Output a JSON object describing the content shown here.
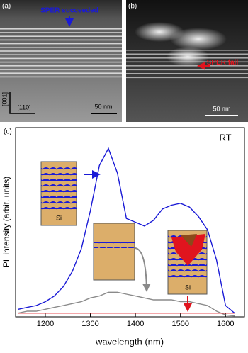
{
  "images": [
    {
      "label": "(a)",
      "annotation": "SPER succeeded",
      "axes": [
        "[001]",
        "[110]"
      ],
      "scale_bar": "50 nm"
    },
    {
      "label": "(b)",
      "annotation": "SPER fail",
      "scale_bar": "50 nm"
    }
  ],
  "chart_data": {
    "type": "line",
    "panel_label": "(c)",
    "annotation": "RT",
    "inset_labels": [
      "Si",
      "Si"
    ],
    "x_label": "wavelength (nm)",
    "y_label": "PL intensity (arbit. units)",
    "x": [
      1140,
      1160,
      1180,
      1200,
      1220,
      1240,
      1260,
      1280,
      1300,
      1320,
      1340,
      1360,
      1380,
      1400,
      1420,
      1440,
      1460,
      1480,
      1500,
      1520,
      1540,
      1560,
      1580,
      1600,
      1620
    ],
    "series": [
      {
        "color": "#1a1ad6",
        "values": [
          0.4,
          0.5,
          0.6,
          0.8,
          1.1,
          1.6,
          2.4,
          3.6,
          5.6,
          8.0,
          8.9,
          7.6,
          5.2,
          5.0,
          4.8,
          5.1,
          5.7,
          5.9,
          6.0,
          5.8,
          5.3,
          4.6,
          3.0,
          0.6,
          0.2
        ]
      },
      {
        "color": "#8a8a8a",
        "values": [
          0.2,
          0.3,
          0.3,
          0.4,
          0.5,
          0.6,
          0.7,
          0.8,
          1.0,
          1.1,
          1.3,
          1.3,
          1.2,
          1.1,
          1.0,
          0.9,
          0.9,
          0.9,
          0.8,
          0.8,
          0.7,
          0.6,
          0.3,
          0.1,
          0.05
        ]
      },
      {
        "color": "#e0141e",
        "values": [
          0.2,
          0.2,
          0.2,
          0.2,
          0.2,
          0.2,
          0.2,
          0.2,
          0.2,
          0.2,
          0.2,
          0.2,
          0.2,
          0.2,
          0.2,
          0.2,
          0.2,
          0.2,
          0.2,
          0.2,
          0.2,
          0.2,
          0.2,
          0.2,
          0.2
        ]
      }
    ],
    "xlim": [
      1134,
      1642
    ],
    "xticks": [
      1200,
      1300,
      1400,
      1500,
      1600
    ],
    "ylim": [
      0,
      10
    ]
  }
}
